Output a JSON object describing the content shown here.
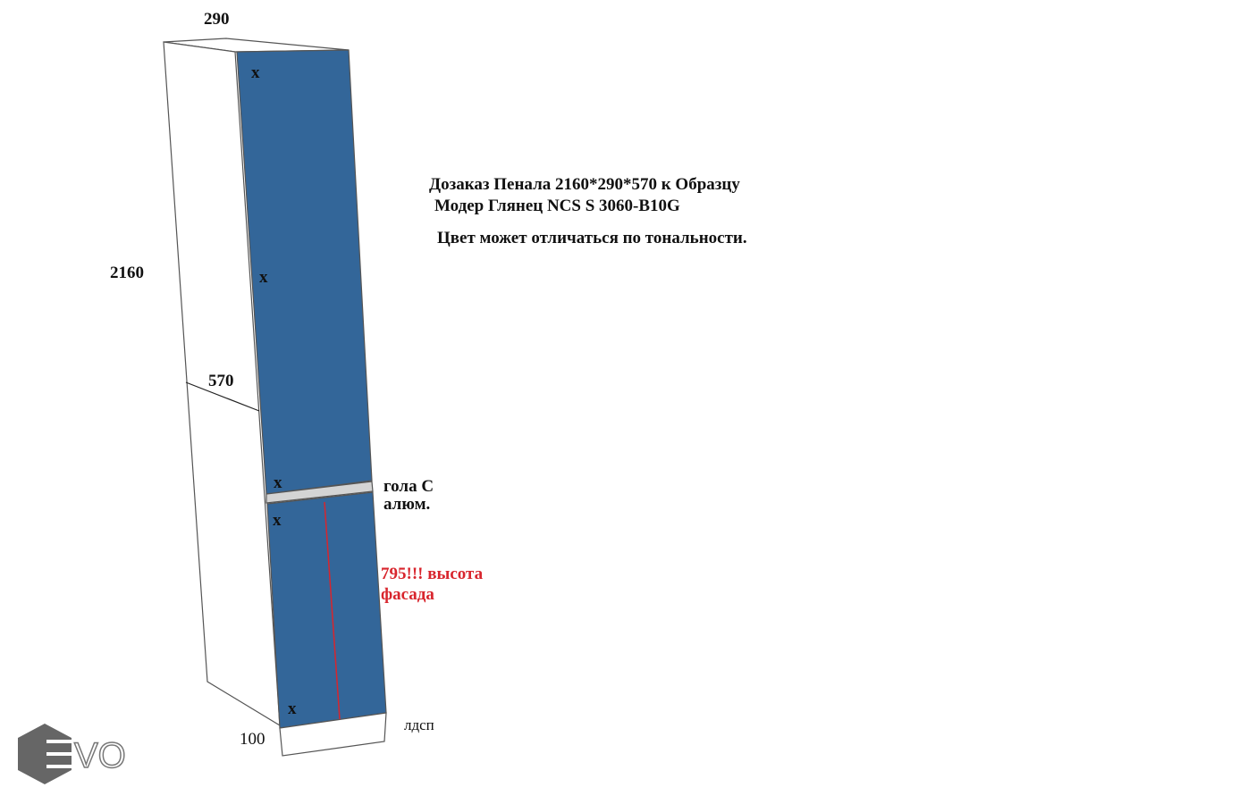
{
  "dimensions": {
    "width": "290",
    "height": "2160",
    "depth": "570",
    "plinth": "100"
  },
  "title": {
    "line1": "Дозаказ Пенала 2160*290*570 к Образцу",
    "line2": "Модер Глянец NCS S 3060-B10G",
    "note": "Цвет может отличаться по тональности."
  },
  "labels": {
    "gola1": "гола С",
    "gola2": "алюм.",
    "facade1": "795!!! высота",
    "facade2": "фасада",
    "plinth_material": "лдсп"
  },
  "markers": [
    "x",
    "x",
    "x",
    "x",
    "x"
  ],
  "logo": "VO"
}
